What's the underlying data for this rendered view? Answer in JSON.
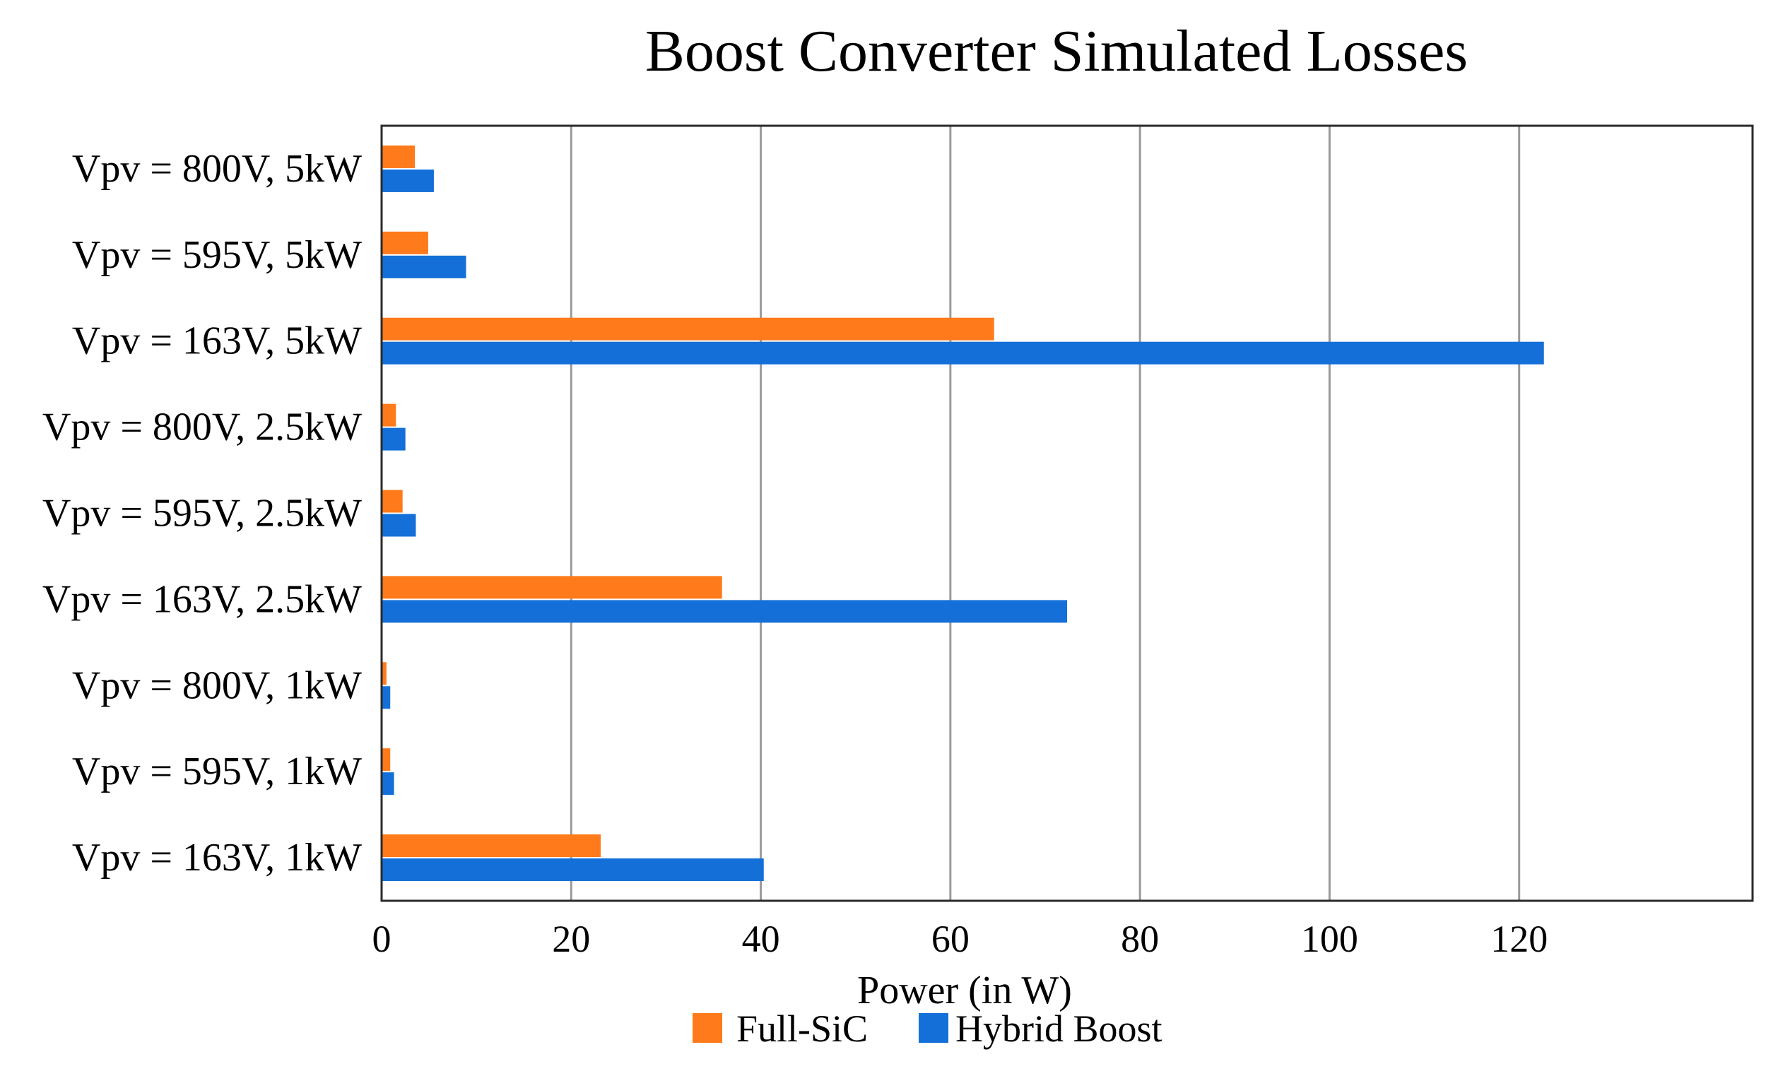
{
  "chart_data": {
    "type": "bar",
    "orientation": "horizontal",
    "title": "Boost Converter Simulated Losses",
    "xlabel": "Power (in W)",
    "ylabel": "",
    "xlim": [
      0,
      140
    ],
    "xticks": [
      0,
      20,
      40,
      60,
      80,
      100,
      120
    ],
    "grid": true,
    "legend_position": "bottom",
    "categories": [
      "Vpv = 800V, 5kW",
      "Vpv = 595V, 5kW",
      "Vpv = 163V, 5kW",
      "Vpv = 800V, 2.5kW",
      "Vpv = 595V, 2.5kW",
      "Vpv = 163V, 2.5kW",
      "Vpv = 800V, 1kW",
      "Vpv = 595V, 1kW",
      "Vpv = 163V, 1kW"
    ],
    "series": [
      {
        "name": "Full-SiC",
        "color": "#ff7a1a",
        "values": [
          3.4,
          4.8,
          64.5,
          1.4,
          2.1,
          35.8,
          0.4,
          0.8,
          23.0
        ]
      },
      {
        "name": "Hybrid Boost",
        "color": "#1470d8",
        "values": [
          5.4,
          8.8,
          122.5,
          2.4,
          3.5,
          72.2,
          0.8,
          1.2,
          40.2
        ]
      }
    ]
  }
}
